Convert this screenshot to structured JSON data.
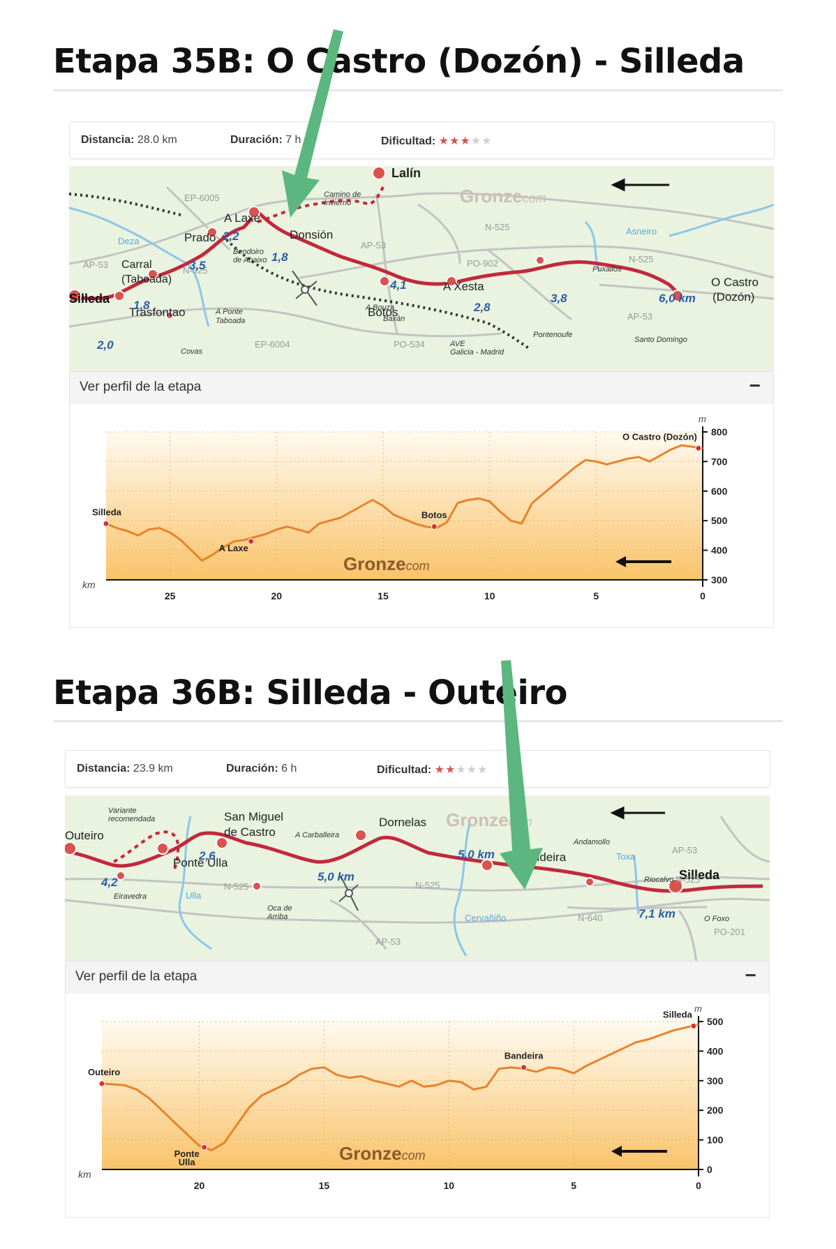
{
  "stage1": {
    "title": "Etapa 35B: O Castro (Dozón) - Silleda",
    "info": {
      "distance_label": "Distancia:",
      "distance_value": "28.0 km",
      "duration_label": "Duración:",
      "duration_value": "7 h",
      "difficulty_label": "Dificultad:",
      "difficulty_stars": 3,
      "difficulty_max": 5
    },
    "map": {
      "brand_main": "Gronze",
      "brand_suffix": "com",
      "towns": [
        "Silleda",
        "Trasfontao",
        "Carral",
        "(Taboada)",
        "Prado",
        "A Laxe",
        "Donsión",
        "Lalín",
        "Botos",
        "A Xesta",
        "O Castro",
        "(Dozón)"
      ],
      "small_places": [
        "Covas",
        "A Ponte",
        "Taboada",
        "Bendoiro",
        "de Abaixo",
        "A Bouza",
        "Baxán",
        "Pontenoufe",
        "Puxallos",
        "Santo Domingo",
        "Camino de",
        "Invierno",
        "AVE",
        "Galicia - Madrid"
      ],
      "roads": [
        "EP-6005",
        "AP-53",
        "N-525",
        "EP-6004",
        "PO-534",
        "PO-902",
        "N-525",
        "AP-53",
        "N-525",
        "AP-53"
      ],
      "rivers": [
        "Deza",
        "Asneiro"
      ],
      "segment_km": [
        "2,0",
        "1,8",
        "3,5",
        "2,2",
        "1,8",
        "4,1",
        "2,8",
        "3,8",
        "6,0 km"
      ]
    },
    "profile_toggle_label": "Ver perfil de la etapa",
    "profile_toggle_icon": "−",
    "chart_data": {
      "type": "line",
      "x_unit": "km",
      "y_unit": "m",
      "x_range": [
        0,
        28
      ],
      "x_reversed": true,
      "ylim": [
        300,
        800
      ],
      "x_ticks": [
        25,
        20,
        15,
        10,
        5,
        0
      ],
      "y_ticks": [
        300,
        400,
        500,
        600,
        700,
        800
      ],
      "watermark_main": "Gronze",
      "watermark_suffix": "com",
      "series": [
        {
          "x": [
            28,
            27.5,
            27,
            26.5,
            26,
            25.5,
            25,
            24.5,
            24,
            23.5,
            23,
            22.5,
            22,
            21.5,
            21,
            20.5,
            20,
            19.5,
            19,
            18.5,
            18,
            17.5,
            17,
            16.5,
            16,
            15.5,
            15,
            14.5,
            14,
            13.5,
            13,
            12.5,
            12,
            11.5,
            11,
            10.5,
            10,
            9.5,
            9,
            8.5,
            8,
            7.5,
            7,
            6.5,
            6,
            5.5,
            5,
            4.5,
            4,
            3.5,
            3,
            2.5,
            2,
            1.5,
            1,
            0.5,
            0
          ],
          "values": [
            490,
            475,
            465,
            450,
            470,
            475,
            460,
            435,
            400,
            365,
            385,
            410,
            430,
            435,
            445,
            455,
            470,
            480,
            470,
            460,
            490,
            500,
            510,
            530,
            550,
            570,
            550,
            520,
            505,
            490,
            480,
            475,
            495,
            560,
            570,
            575,
            565,
            530,
            500,
            490,
            560,
            590,
            620,
            650,
            680,
            705,
            700,
            690,
            700,
            710,
            715,
            700,
            720,
            740,
            755,
            750,
            745
          ]
        }
      ],
      "markers": [
        {
          "label": "Silleda",
          "x": 28,
          "y": 490
        },
        {
          "label": "A Laxe",
          "x": 21.2,
          "y": 430
        },
        {
          "label": "Botos",
          "x": 12.6,
          "y": 480
        },
        {
          "label": "O Castro (Dozón)",
          "x": 0.2,
          "y": 745
        }
      ]
    }
  },
  "stage2": {
    "title": "Etapa 36B: Silleda - Outeiro",
    "info": {
      "distance_label": "Distancia:",
      "distance_value": "23.9 km",
      "duration_label": "Duración:",
      "duration_value": "6 h",
      "difficulty_label": "Dificultad:",
      "difficulty_stars": 2,
      "difficulty_max": 5
    },
    "map": {
      "brand_main": "Gronze",
      "brand_suffix": "com",
      "towns": [
        "Outeiro",
        "Ponte Ulla",
        "San Miguel",
        "de Castro",
        "Dornelas",
        "Bandeira",
        "Silleda"
      ],
      "small_places": [
        "Variante",
        "recomendada",
        "Eiravedra",
        "Oca de",
        "Arriba",
        "A Carballeira",
        "Andamollo",
        "Riocalvo",
        "O Foxo"
      ],
      "roads": [
        "N-525",
        "N-525",
        "AP-53",
        "N-640",
        "N-525",
        "AP-53",
        "PO-201"
      ],
      "rivers": [
        "Ulla",
        "Cervañiño",
        "Toxa"
      ],
      "segment_km": [
        "4,2",
        "2,6",
        "5,0 km",
        "5,0 km",
        "7,1 km"
      ]
    },
    "profile_toggle_label": "Ver perfil de la etapa",
    "profile_toggle_icon": "−",
    "chart_data": {
      "type": "line",
      "x_unit": "km",
      "y_unit": "m",
      "x_range": [
        0,
        23.9
      ],
      "x_reversed": true,
      "ylim": [
        0,
        500
      ],
      "x_ticks": [
        20,
        15,
        10,
        5,
        0
      ],
      "y_ticks": [
        0,
        100,
        200,
        300,
        400,
        500
      ],
      "watermark_main": "Gronze",
      "watermark_suffix": "com",
      "series": [
        {
          "x": [
            23.9,
            23.5,
            23,
            22.5,
            22,
            21.5,
            21,
            20.5,
            20,
            19.5,
            19,
            18.5,
            18,
            17.5,
            17,
            16.5,
            16,
            15.5,
            15,
            14.5,
            14,
            13.5,
            13,
            12.5,
            12,
            11.5,
            11,
            10.5,
            10,
            9.5,
            9,
            8.5,
            8,
            7.5,
            7,
            6.5,
            6,
            5.5,
            5,
            4.5,
            4,
            3.5,
            3,
            2.5,
            2,
            1.5,
            1,
            0.5,
            0
          ],
          "values": [
            290,
            288,
            285,
            270,
            240,
            200,
            160,
            120,
            80,
            65,
            90,
            150,
            210,
            250,
            270,
            290,
            320,
            340,
            345,
            320,
            310,
            315,
            300,
            290,
            280,
            300,
            280,
            285,
            300,
            295,
            270,
            280,
            340,
            345,
            340,
            330,
            345,
            340,
            325,
            350,
            370,
            390,
            410,
            430,
            440,
            455,
            470,
            480,
            490
          ]
        }
      ],
      "markers": [
        {
          "label": "Outeiro",
          "x": 23.9,
          "y": 290
        },
        {
          "label": "Ponte",
          "x": 19.8,
          "y": 75
        },
        {
          "label": "Ulla",
          "x": 19.8,
          "y": 75
        },
        {
          "label": "Bandeira",
          "x": 7,
          "y": 345
        },
        {
          "label": "Silleda",
          "x": 0.2,
          "y": 485
        }
      ]
    }
  }
}
